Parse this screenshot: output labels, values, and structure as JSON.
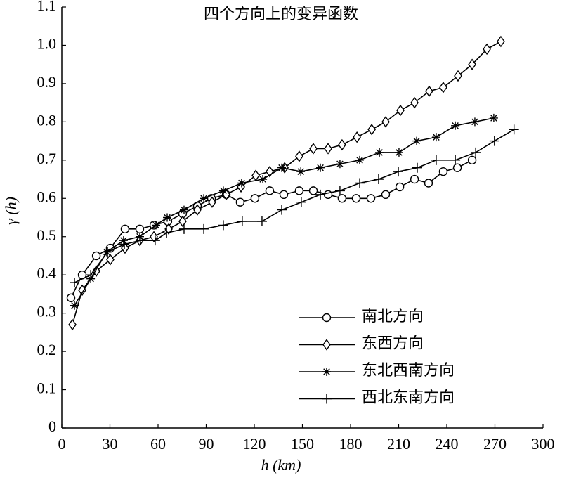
{
  "chart_data": {
    "type": "line",
    "title": "四个方向上的变异函数",
    "xlabel": "h (km)",
    "ylabel": "γ (h)",
    "xlim": [
      0,
      300
    ],
    "xticks": [
      0,
      30,
      60,
      90,
      120,
      150,
      180,
      210,
      240,
      270,
      300
    ],
    "ylim": [
      0,
      1.1
    ],
    "yticks": [
      0,
      0.1,
      0.2,
      0.3,
      0.4,
      0.5,
      0.6,
      0.7,
      0.8,
      0.9,
      {
        "value": 1,
        "label": "1.0"
      },
      1.1
    ],
    "legend": "lower right",
    "series": [
      {
        "name": "南北方向",
        "color": "#000000",
        "marker": "circle",
        "x": [
          5.7,
          12.7,
          21.5,
          30.2,
          39.4,
          48.6,
          57.4,
          66.1,
          75.3,
          84.5,
          93.3,
          102.5,
          111.2,
          120.4,
          129.6,
          138.4,
          148,
          156.8,
          166,
          174.7,
          183.5,
          192.7,
          201.9,
          210.7,
          219.9,
          228.6,
          237.8,
          246.6,
          255.8
        ],
        "values": [
          0.34,
          0.4,
          0.45,
          0.47,
          0.52,
          0.52,
          0.53,
          0.54,
          0.56,
          0.58,
          0.6,
          0.61,
          0.59,
          0.6,
          0.62,
          0.61,
          0.62,
          0.62,
          0.61,
          0.6,
          0.6,
          0.6,
          0.61,
          0.63,
          0.65,
          0.64,
          0.67,
          0.68,
          0.7
        ]
      },
      {
        "name": "东西方向",
        "color": "#000000",
        "marker": "diamond",
        "x": [
          6.6,
          12.7,
          21.5,
          30.2,
          39.4,
          48.6,
          57.4,
          66.6,
          75.3,
          84.5,
          93.7,
          102.5,
          111.7,
          120.9,
          129.6,
          138.9,
          148,
          156.8,
          166,
          174.7,
          184,
          193.2,
          201.9,
          211.1,
          219.9,
          229,
          237.8,
          247,
          255.8,
          265,
          273.7
        ],
        "values": [
          0.27,
          0.36,
          0.41,
          0.44,
          0.47,
          0.49,
          0.5,
          0.52,
          0.54,
          0.57,
          0.59,
          0.61,
          0.63,
          0.66,
          0.67,
          0.68,
          0.71,
          0.73,
          0.73,
          0.74,
          0.76,
          0.78,
          0.8,
          0.83,
          0.85,
          0.88,
          0.89,
          0.92,
          0.95,
          0.99,
          1.01
        ]
      },
      {
        "name": "东北西南方向",
        "color": "#000000",
        "marker": "asterisk",
        "x": [
          7.9,
          18,
          28,
          38.5,
          48.6,
          58.7,
          65.7,
          76.2,
          88.5,
          100.7,
          112.1,
          125.3,
          137.1,
          149,
          161.2,
          173.4,
          185.7,
          198,
          210.2,
          221.2,
          233.4,
          245.3,
          257.5,
          269.3
        ],
        "values": [
          0.32,
          0.39,
          0.46,
          0.49,
          0.5,
          0.53,
          0.55,
          0.57,
          0.6,
          0.62,
          0.64,
          0.65,
          0.68,
          0.67,
          0.68,
          0.69,
          0.7,
          0.72,
          0.72,
          0.75,
          0.76,
          0.79,
          0.8,
          0.81
        ]
      },
      {
        "name": "西北东南方向",
        "color": "#000000",
        "marker": "plus",
        "x": [
          7.9,
          18,
          28.5,
          39,
          49,
          58.2,
          65.3,
          76.2,
          88.5,
          100.7,
          112.5,
          124.8,
          137.1,
          149.3,
          161.2,
          173.4,
          185.7,
          197.5,
          209.8,
          221.6,
          233.4,
          245.3,
          258,
          269.7,
          281.9
        ],
        "values": [
          0.38,
          0.4,
          0.46,
          0.48,
          0.49,
          0.49,
          0.51,
          0.52,
          0.52,
          0.53,
          0.54,
          0.54,
          0.57,
          0.59,
          0.61,
          0.62,
          0.64,
          0.65,
          0.67,
          0.68,
          0.7,
          0.7,
          0.72,
          0.75,
          0.78
        ]
      }
    ]
  }
}
